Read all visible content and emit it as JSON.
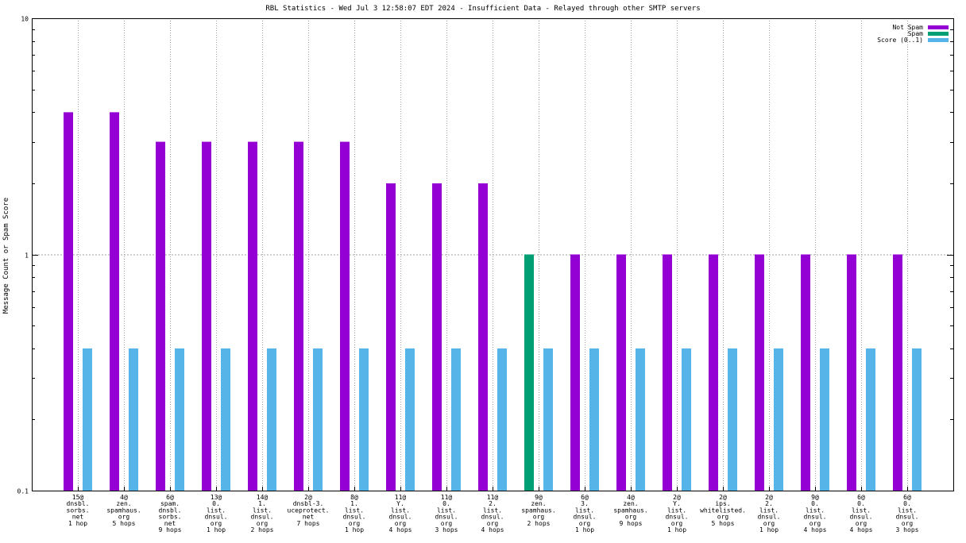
{
  "chart_data": {
    "type": "bar",
    "title": "RBL Statistics - Wed Jul  3 12:58:07 EDT 2024 - Insufficient Data - Relayed through other SMTP servers",
    "ylabel": "Message Count or Spam Score",
    "xlabel": "",
    "yscale": "log",
    "ylim": [
      0.1,
      10
    ],
    "yticks": [
      "0.1",
      "1",
      "10"
    ],
    "legend_position": "top-right",
    "grid": true,
    "categories": [
      [
        "15@",
        "dnsbl.",
        "sorbs.",
        "net",
        "1 hop"
      ],
      [
        "4@",
        "zen.",
        "spamhaus.",
        "org",
        "5 hops"
      ],
      [
        "6@",
        "spam.",
        "dnsbl.",
        "sorbs.",
        "net",
        "9 hops"
      ],
      [
        "13@",
        "0.",
        "list.",
        "dnsul.",
        "org",
        "1 hop"
      ],
      [
        "14@",
        "1.",
        "list.",
        "dnsul.",
        "org",
        "2 hops"
      ],
      [
        "2@",
        "dnsbl-3.",
        "uceprotect.",
        "net",
        "7 hops"
      ],
      [
        "8@",
        "1.",
        "list.",
        "dnsul.",
        "org",
        "1 hop"
      ],
      [
        "11@",
        "Y.",
        "list.",
        "dnsul.",
        "org",
        "4 hops"
      ],
      [
        "11@",
        "0.",
        "list.",
        "dnsul.",
        "org",
        "3 hops"
      ],
      [
        "11@",
        "2.",
        "list.",
        "dnsul.",
        "org",
        "4 hops"
      ],
      [
        "9@",
        "zen.",
        "spamhaus.",
        "org",
        "2 hops"
      ],
      [
        "6@",
        "3.",
        "list.",
        "dnsul.",
        "org",
        "1 hop"
      ],
      [
        "4@",
        "zen.",
        "spamhaus.",
        "org",
        "9 hops"
      ],
      [
        "2@",
        "Y.",
        "list.",
        "dnsul.",
        "org",
        "1 hop"
      ],
      [
        "2@",
        "ips.",
        "whitelisted.",
        "org",
        "5 hops"
      ],
      [
        "2@",
        "2.",
        "list.",
        "dnsul.",
        "org",
        "1 hop"
      ],
      [
        "9@",
        "0.",
        "list.",
        "dnsul.",
        "org",
        "4 hops"
      ],
      [
        "6@",
        "0.",
        "list.",
        "dnsul.",
        "org",
        "4 hops"
      ],
      [
        "6@",
        "0.",
        "list.",
        "dnsul.",
        "org",
        "3 hops"
      ]
    ],
    "series": [
      {
        "name": "Not Spam",
        "color": "#9400d3",
        "values": [
          4,
          4,
          3,
          3,
          3,
          3,
          3,
          2,
          2,
          2,
          null,
          1,
          1,
          1,
          1,
          1,
          1,
          1,
          1
        ]
      },
      {
        "name": "Spam",
        "color": "#009e73",
        "values": [
          null,
          null,
          null,
          null,
          null,
          null,
          null,
          null,
          null,
          null,
          1,
          null,
          null,
          null,
          null,
          null,
          null,
          null,
          null
        ]
      },
      {
        "name": "Score (0..1)",
        "color": "#56b4e9",
        "values": [
          0.4,
          0.4,
          0.4,
          0.4,
          0.4,
          0.4,
          0.4,
          0.4,
          0.4,
          0.4,
          0.4,
          0.4,
          0.4,
          0.4,
          0.4,
          0.4,
          0.4,
          0.4,
          0.4
        ]
      }
    ]
  }
}
